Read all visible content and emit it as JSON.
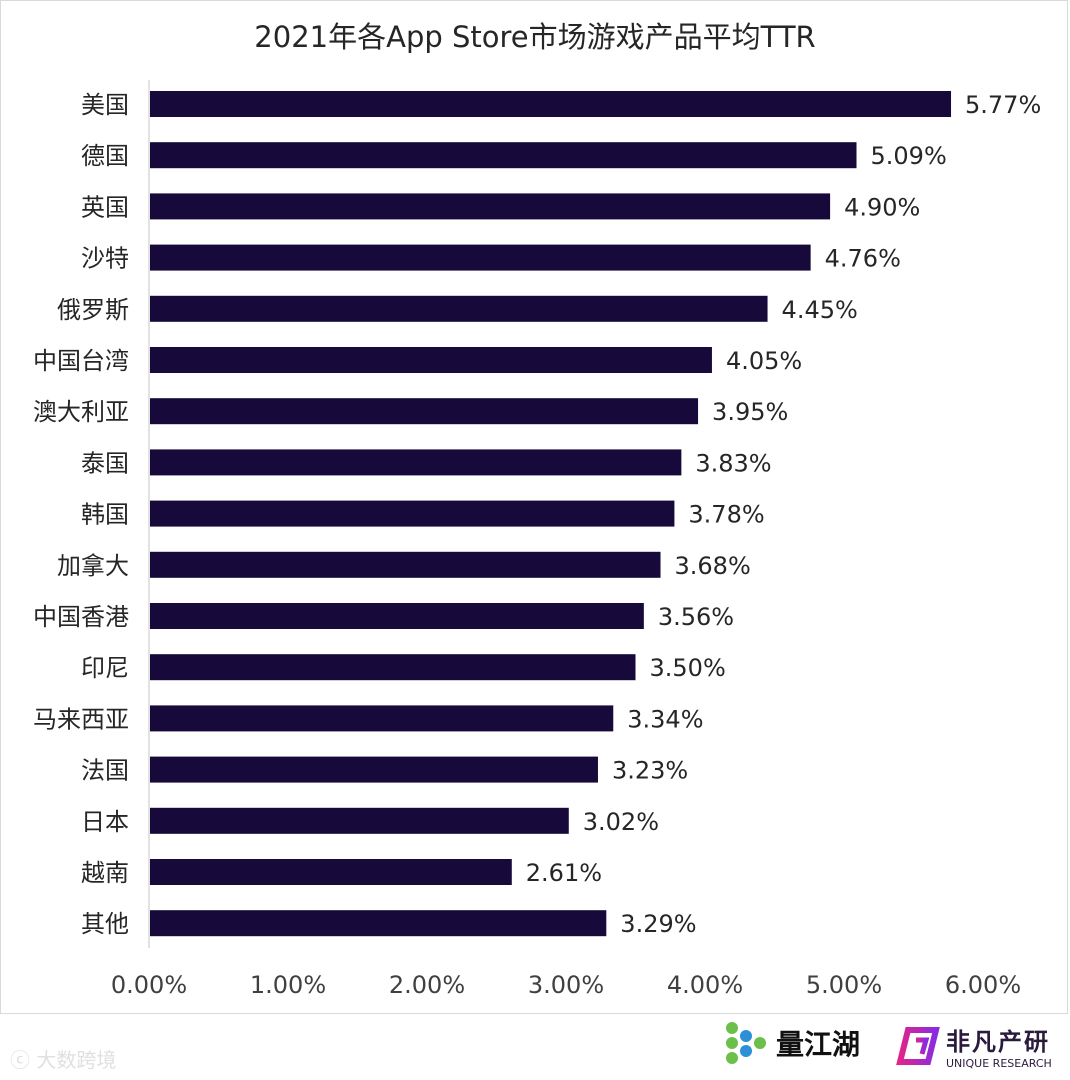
{
  "chart_data": {
    "type": "bar",
    "orientation": "horizontal",
    "title": "2021年各App Store市场游戏产品平均TTR",
    "categories": [
      "美国",
      "德国",
      "英国",
      "沙特",
      "俄罗斯",
      "中国台湾",
      "澳大利亚",
      "泰国",
      "韩国",
      "加拿大",
      "中国香港",
      "印尼",
      "马来西亚",
      "法国",
      "日本",
      "越南",
      "其他"
    ],
    "values": [
      5.77,
      5.09,
      4.9,
      4.76,
      4.45,
      4.05,
      3.95,
      3.83,
      3.78,
      3.68,
      3.56,
      3.5,
      3.34,
      3.23,
      3.02,
      2.61,
      3.29
    ],
    "data_labels": [
      "5.77%",
      "5.09%",
      "4.90%",
      "4.76%",
      "4.45%",
      "4.05%",
      "3.95%",
      "3.83%",
      "3.78%",
      "3.68%",
      "3.56%",
      "3.50%",
      "3.34%",
      "3.23%",
      "3.02%",
      "2.61%",
      "3.29%"
    ],
    "xlim": [
      0,
      6
    ],
    "x_ticks": [
      "0.00%",
      "1.00%",
      "2.00%",
      "3.00%",
      "4.00%",
      "5.00%",
      "6.00%"
    ],
    "unit": "%",
    "grid": false,
    "bar_color": "#170a3a"
  },
  "watermark": "大数跨境",
  "logos": {
    "left": "量江湖",
    "right_cn": "非凡产研",
    "right_en": "UNIQUE RESEARCH"
  }
}
